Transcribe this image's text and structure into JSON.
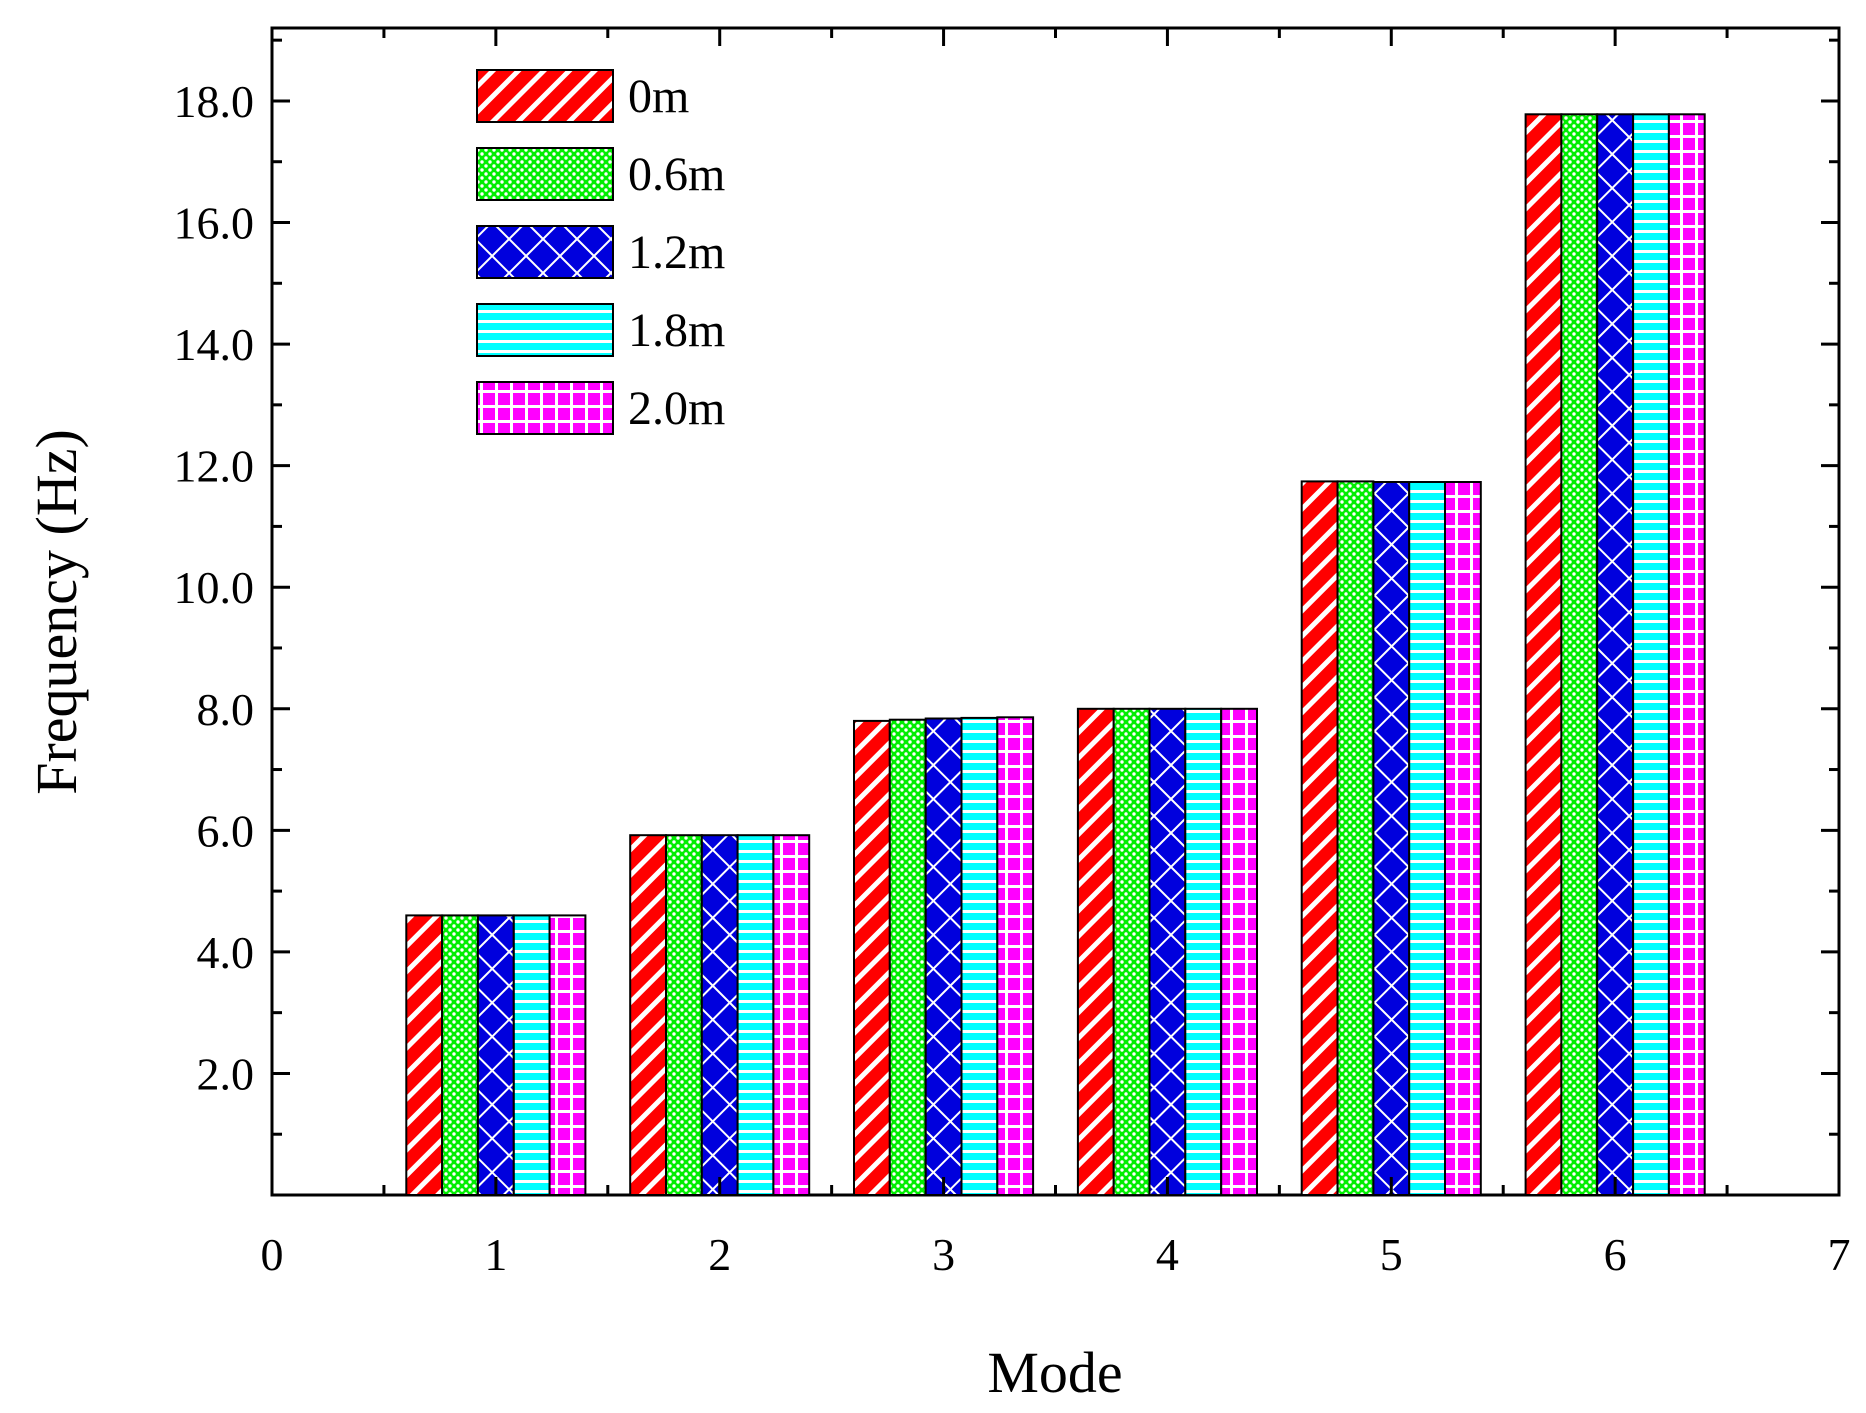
{
  "chart_data": {
    "type": "bar",
    "title": "",
    "xlabel": "Mode",
    "ylabel": "Frequency (Hz)",
    "x_ticks": [
      0,
      1,
      2,
      3,
      4,
      5,
      6,
      7
    ],
    "x_tick_labels": [
      "0",
      "1",
      "2",
      "3",
      "4",
      "5",
      "6",
      "7"
    ],
    "xlim": [
      0,
      7
    ],
    "y_ticks": [
      2.0,
      4.0,
      6.0,
      8.0,
      10.0,
      12.0,
      14.0,
      16.0,
      18.0
    ],
    "y_tick_labels": [
      "2.0",
      "4.0",
      "6.0",
      "8.0",
      "10.0",
      "12.0",
      "14.0",
      "16.0",
      "18.0"
    ],
    "ylim": [
      0,
      19.2
    ],
    "grid": false,
    "legend_position": "top-left",
    "categories": [
      1,
      2,
      3,
      4,
      5,
      6
    ],
    "series": [
      {
        "name": "0m",
        "color": "#ff0000",
        "pattern": "diagonal",
        "values": [
          4.6,
          5.92,
          7.8,
          8.0,
          11.74,
          17.78
        ]
      },
      {
        "name": "0.6m",
        "color": "#00ee00",
        "pattern": "dots",
        "values": [
          4.6,
          5.92,
          7.82,
          8.0,
          11.74,
          17.78
        ]
      },
      {
        "name": "1.2m",
        "color": "#0000dd",
        "pattern": "crosshatch",
        "values": [
          4.6,
          5.92,
          7.84,
          8.0,
          11.73,
          17.78
        ]
      },
      {
        "name": "1.8m",
        "color": "#00ffff",
        "pattern": "horizontal",
        "values": [
          4.6,
          5.92,
          7.85,
          8.0,
          11.73,
          17.78
        ]
      },
      {
        "name": "2.0m",
        "color": "#ff00ff",
        "pattern": "grid",
        "values": [
          4.6,
          5.92,
          7.86,
          8.0,
          11.73,
          17.78
        ]
      }
    ]
  }
}
